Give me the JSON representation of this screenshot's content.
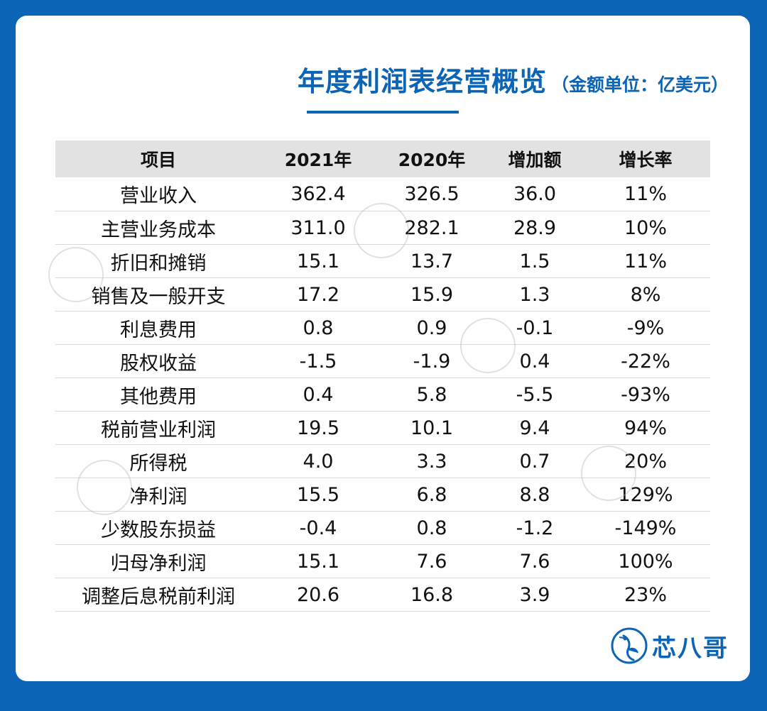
{
  "title": {
    "main": "年度利润表经营概览",
    "unit": "（金额单位：亿美元）"
  },
  "table": {
    "headers": [
      "项目",
      "2021年",
      "2020年",
      "增加额",
      "增长率"
    ],
    "rows": [
      [
        "营业收入",
        "362.4",
        "326.5",
        "36.0",
        "11%"
      ],
      [
        "主营业务成本",
        "311.0",
        "282.1",
        "28.9",
        "10%"
      ],
      [
        "折旧和摊销",
        "15.1",
        "13.7",
        "1.5",
        "11%"
      ],
      [
        "销售及一般开支",
        "17.2",
        "15.9",
        "1.3",
        "8%"
      ],
      [
        "利息费用",
        "0.8",
        "0.9",
        "-0.1",
        "-9%"
      ],
      [
        "股权收益",
        "-1.5",
        "-1.9",
        "0.4",
        "-22%"
      ],
      [
        "其他费用",
        "0.4",
        "5.8",
        "-5.5",
        "-93%"
      ],
      [
        "税前营业利润",
        "19.5",
        "10.1",
        "9.4",
        "94%"
      ],
      [
        "所得税",
        "4.0",
        "3.3",
        "0.7",
        "20%"
      ],
      [
        "净利润",
        "15.5",
        "6.8",
        "8.8",
        "129%"
      ],
      [
        "少数股东损益",
        "-0.4",
        "0.8",
        "-1.2",
        "-149%"
      ],
      [
        "归母净利润",
        "15.1",
        "7.6",
        "7.6",
        "100%"
      ],
      [
        "调整后息税前利润",
        "20.6",
        "16.8",
        "3.9",
        "23%"
      ]
    ]
  },
  "brand": {
    "name": "芯八哥",
    "icon": "bird-logo-icon"
  },
  "watermark": "芯八哥",
  "colors": {
    "accent": "#0b64b6",
    "header_bg": "#e2e2e2"
  }
}
